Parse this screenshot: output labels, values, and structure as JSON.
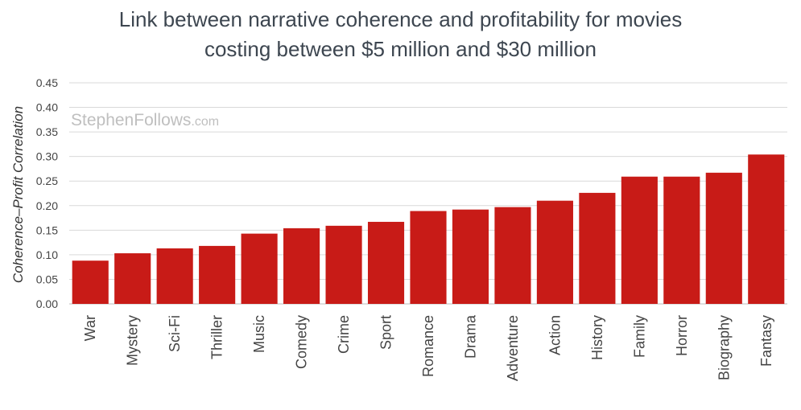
{
  "chart_data": {
    "type": "bar",
    "title": "Link between narrative coherence and profitability for movies costing between $5 million and $30 million",
    "title_lines": [
      "Link between narrative coherence and profitability for movies",
      "costing between $5 million and $30 million"
    ],
    "xlabel": "",
    "ylabel": "Coherence–Profit Correlation",
    "ylim": [
      0,
      0.45
    ],
    "yticks": [
      "0.00",
      "0.05",
      "0.10",
      "0.15",
      "0.20",
      "0.25",
      "0.30",
      "0.35",
      "0.40",
      "0.45"
    ],
    "grid": true,
    "bar_color": "#c81b17",
    "categories": [
      "War",
      "Mystery",
      "Sci-Fi",
      "Thriller",
      "Music",
      "Comedy",
      "Crime",
      "Sport",
      "Romance",
      "Drama",
      "Adventure",
      "Action",
      "History",
      "Family",
      "Horror",
      "Biography",
      "Fantasy"
    ],
    "values": [
      0.088,
      0.103,
      0.113,
      0.118,
      0.143,
      0.154,
      0.159,
      0.167,
      0.189,
      0.192,
      0.197,
      0.21,
      0.226,
      0.259,
      0.259,
      0.267,
      0.304
    ]
  },
  "watermark": {
    "main": "StephenFollows",
    "suffix": ".com"
  }
}
